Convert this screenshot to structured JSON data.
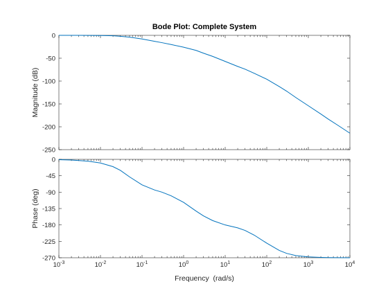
{
  "chart_data": {
    "type": "line",
    "title": "Bode Plot: Complete System",
    "xlabel": "Frequency  (rad/s)",
    "x_scale": "log",
    "xlim": [
      0.001,
      10000
    ],
    "x_ticks": [
      {
        "base": "10",
        "exp": "-3"
      },
      {
        "base": "10",
        "exp": "-2"
      },
      {
        "base": "10",
        "exp": "-1"
      },
      {
        "base": "10",
        "exp": "0"
      },
      {
        "base": "10",
        "exp": "1"
      },
      {
        "base": "10",
        "exp": "2"
      },
      {
        "base": "10",
        "exp": "3"
      },
      {
        "base": "10",
        "exp": "4"
      }
    ],
    "line_color": "#0072BD",
    "grid": false,
    "subplots": [
      {
        "ylabel": "Magnitude (dB)",
        "ylim": [
          -250,
          0
        ],
        "yticks": [
          0,
          -50,
          -100,
          -150,
          -200,
          -250
        ],
        "series": [
          {
            "x": [
              0.001,
              0.003,
              0.01,
              0.02,
              0.03,
              0.05,
              0.1,
              0.2,
              0.3,
              0.5,
              1,
              2,
              3,
              5,
              10,
              20,
              30,
              50,
              100,
              200,
              300,
              500,
              1000,
              2000,
              3000,
              5000,
              10000
            ],
            "y": [
              0,
              0,
              -0.3,
              -1,
              -2,
              -4,
              -8,
              -13,
              -16,
              -20,
              -26,
              -33,
              -39,
              -46,
              -57,
              -68,
              -74,
              -83,
              -96,
              -112,
              -122,
              -136,
              -154,
              -172,
              -183,
              -196,
              -214
            ]
          }
        ]
      },
      {
        "ylabel": "Phase (deg)",
        "ylim": [
          -270,
          0
        ],
        "yticks": [
          0,
          -45,
          -90,
          -135,
          -180,
          -225,
          -270
        ],
        "series": [
          {
            "x": [
              0.001,
              0.002,
              0.005,
              0.01,
              0.02,
              0.03,
              0.05,
              0.1,
              0.2,
              0.3,
              0.5,
              1,
              2,
              3,
              5,
              10,
              20,
              30,
              50,
              100,
              200,
              300,
              500,
              1000,
              2000,
              3000,
              5000,
              10000
            ],
            "y": [
              -1,
              -2,
              -5,
              -10,
              -20,
              -30,
              -48,
              -70,
              -84,
              -90,
              -100,
              -118,
              -142,
              -155,
              -168,
              -180,
              -188,
              -195,
              -208,
              -230,
              -250,
              -258,
              -264,
              -267.5,
              -269,
              -269.5,
              -269.8,
              -270
            ]
          }
        ]
      }
    ]
  }
}
